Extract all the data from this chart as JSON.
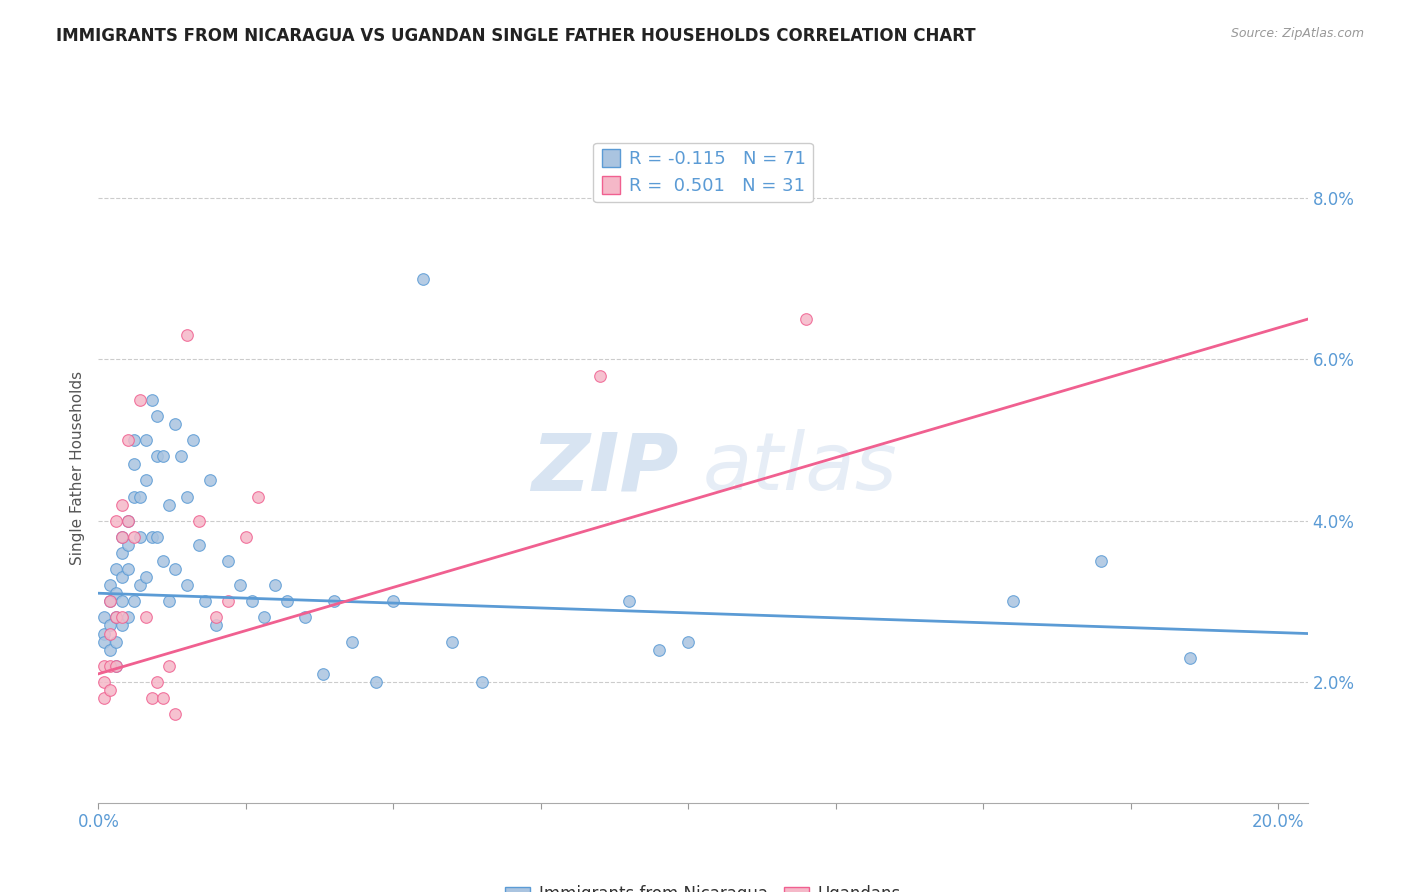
{
  "title": "IMMIGRANTS FROM NICARAGUA VS UGANDAN SINGLE FATHER HOUSEHOLDS CORRELATION CHART",
  "source": "Source: ZipAtlas.com",
  "ylabel": "Single Father Households",
  "ytick_labels": [
    "2.0%",
    "4.0%",
    "6.0%",
    "8.0%"
  ],
  "ytick_values": [
    0.02,
    0.04,
    0.06,
    0.08
  ],
  "xtick_values": [
    0.0,
    0.025,
    0.05,
    0.075,
    0.1,
    0.125,
    0.15,
    0.175,
    0.2
  ],
  "xmin": 0.0,
  "xmax": 0.205,
  "ymin": 0.005,
  "ymax": 0.088,
  "blue_color": "#aac4e0",
  "blue_line_color": "#5b9bd5",
  "pink_color": "#f5b8c8",
  "pink_line_color": "#f06090",
  "legend_R_blue": "-0.115",
  "legend_N_blue": "71",
  "legend_R_pink": "0.501",
  "legend_N_pink": "31",
  "legend_label_blue": "Immigrants from Nicaragua",
  "legend_label_pink": "Ugandans",
  "watermark_zip": "ZIP",
  "watermark_atlas": "atlas",
  "blue_scatter_x": [
    0.001,
    0.001,
    0.001,
    0.002,
    0.002,
    0.002,
    0.002,
    0.003,
    0.003,
    0.003,
    0.003,
    0.003,
    0.004,
    0.004,
    0.004,
    0.004,
    0.004,
    0.005,
    0.005,
    0.005,
    0.005,
    0.006,
    0.006,
    0.006,
    0.006,
    0.007,
    0.007,
    0.007,
    0.008,
    0.008,
    0.008,
    0.009,
    0.009,
    0.01,
    0.01,
    0.01,
    0.011,
    0.011,
    0.012,
    0.012,
    0.013,
    0.013,
    0.014,
    0.015,
    0.015,
    0.016,
    0.017,
    0.018,
    0.019,
    0.02,
    0.022,
    0.024,
    0.026,
    0.028,
    0.03,
    0.032,
    0.035,
    0.038,
    0.04,
    0.043,
    0.047,
    0.05,
    0.055,
    0.06,
    0.065,
    0.09,
    0.095,
    0.1,
    0.155,
    0.17,
    0.185
  ],
  "blue_scatter_y": [
    0.028,
    0.026,
    0.025,
    0.032,
    0.03,
    0.027,
    0.024,
    0.034,
    0.031,
    0.028,
    0.025,
    0.022,
    0.038,
    0.036,
    0.033,
    0.03,
    0.027,
    0.04,
    0.037,
    0.034,
    0.028,
    0.05,
    0.047,
    0.043,
    0.03,
    0.043,
    0.038,
    0.032,
    0.05,
    0.045,
    0.033,
    0.055,
    0.038,
    0.053,
    0.048,
    0.038,
    0.048,
    0.035,
    0.042,
    0.03,
    0.052,
    0.034,
    0.048,
    0.043,
    0.032,
    0.05,
    0.037,
    0.03,
    0.045,
    0.027,
    0.035,
    0.032,
    0.03,
    0.028,
    0.032,
    0.03,
    0.028,
    0.021,
    0.03,
    0.025,
    0.02,
    0.03,
    0.07,
    0.025,
    0.02,
    0.03,
    0.024,
    0.025,
    0.03,
    0.035,
    0.023
  ],
  "pink_scatter_x": [
    0.001,
    0.001,
    0.001,
    0.002,
    0.002,
    0.002,
    0.002,
    0.003,
    0.003,
    0.003,
    0.004,
    0.004,
    0.004,
    0.005,
    0.005,
    0.006,
    0.007,
    0.008,
    0.009,
    0.01,
    0.011,
    0.012,
    0.013,
    0.015,
    0.017,
    0.02,
    0.022,
    0.025,
    0.027,
    0.085,
    0.12
  ],
  "pink_scatter_y": [
    0.022,
    0.02,
    0.018,
    0.03,
    0.026,
    0.022,
    0.019,
    0.04,
    0.028,
    0.022,
    0.042,
    0.038,
    0.028,
    0.05,
    0.04,
    0.038,
    0.055,
    0.028,
    0.018,
    0.02,
    0.018,
    0.022,
    0.016,
    0.063,
    0.04,
    0.028,
    0.03,
    0.038,
    0.043,
    0.058,
    0.065
  ],
  "blue_line_x": [
    0.0,
    0.205
  ],
  "blue_line_y": [
    0.031,
    0.026
  ],
  "pink_line_x": [
    0.0,
    0.205
  ],
  "pink_line_y": [
    0.021,
    0.065
  ]
}
